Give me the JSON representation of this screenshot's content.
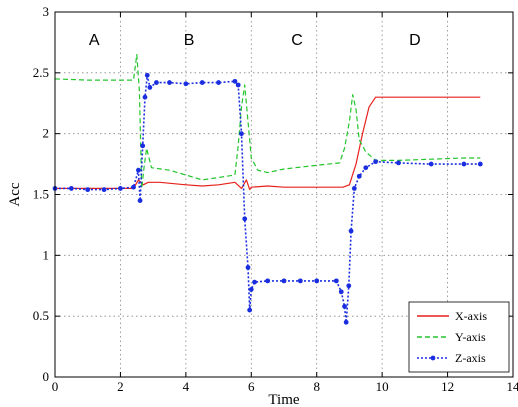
{
  "chart_data": {
    "type": "line",
    "title": "",
    "xlabel": "Time",
    "ylabel": "Acc",
    "xlim": [
      0,
      14
    ],
    "ylim": [
      0,
      3
    ],
    "x_ticks": [
      0,
      2,
      4,
      6,
      8,
      10,
      12,
      14
    ],
    "y_ticks": [
      0,
      0.5,
      1,
      1.5,
      2,
      2.5,
      3
    ],
    "grid": true,
    "grid_style": "dotted",
    "legend_position": "bottom-right",
    "region_labels": [
      {
        "label": "A",
        "x": 1.2,
        "y": 2.78
      },
      {
        "label": "B",
        "x": 4.1,
        "y": 2.78
      },
      {
        "label": "C",
        "x": 7.4,
        "y": 2.78
      },
      {
        "label": "D",
        "x": 11.0,
        "y": 2.78
      }
    ],
    "series": [
      {
        "name": "X-axis",
        "color": "#e8211b",
        "dash": "solid",
        "marker": "none",
        "points": [
          [
            0,
            1.55
          ],
          [
            0.5,
            1.55
          ],
          [
            1.0,
            1.55
          ],
          [
            1.5,
            1.55
          ],
          [
            2.0,
            1.55
          ],
          [
            2.4,
            1.55
          ],
          [
            2.55,
            1.62
          ],
          [
            2.7,
            1.58
          ],
          [
            2.85,
            1.6
          ],
          [
            3.2,
            1.6
          ],
          [
            4.0,
            1.58
          ],
          [
            4.5,
            1.57
          ],
          [
            5.0,
            1.58
          ],
          [
            5.5,
            1.6
          ],
          [
            5.7,
            1.55
          ],
          [
            5.85,
            1.62
          ],
          [
            5.95,
            1.54
          ],
          [
            6.0,
            1.56
          ],
          [
            6.5,
            1.57
          ],
          [
            7.0,
            1.56
          ],
          [
            8.0,
            1.56
          ],
          [
            8.8,
            1.56
          ],
          [
            9.0,
            1.58
          ],
          [
            9.2,
            1.75
          ],
          [
            9.4,
            2.0
          ],
          [
            9.6,
            2.22
          ],
          [
            9.8,
            2.3
          ],
          [
            10.5,
            2.3
          ],
          [
            11.5,
            2.3
          ],
          [
            12.5,
            2.3
          ],
          [
            13.0,
            2.3
          ]
        ]
      },
      {
        "name": "Y-axis",
        "color": "#22c52c",
        "dash": "dashed",
        "marker": "none",
        "points": [
          [
            0,
            2.45
          ],
          [
            1.0,
            2.44
          ],
          [
            2.0,
            2.44
          ],
          [
            2.4,
            2.44
          ],
          [
            2.5,
            2.65
          ],
          [
            2.58,
            2.35
          ],
          [
            2.65,
            1.55
          ],
          [
            2.72,
            1.72
          ],
          [
            2.8,
            1.88
          ],
          [
            2.95,
            1.72
          ],
          [
            3.5,
            1.7
          ],
          [
            4.0,
            1.66
          ],
          [
            4.5,
            1.62
          ],
          [
            5.0,
            1.64
          ],
          [
            5.5,
            1.66
          ],
          [
            5.6,
            1.9
          ],
          [
            5.7,
            2.22
          ],
          [
            5.8,
            2.4
          ],
          [
            5.9,
            2.1
          ],
          [
            6.0,
            1.8
          ],
          [
            6.2,
            1.7
          ],
          [
            6.5,
            1.68
          ],
          [
            7.0,
            1.71
          ],
          [
            8.0,
            1.74
          ],
          [
            8.7,
            1.76
          ],
          [
            8.85,
            1.88
          ],
          [
            9.0,
            2.1
          ],
          [
            9.1,
            2.32
          ],
          [
            9.2,
            2.2
          ],
          [
            9.3,
            1.95
          ],
          [
            9.5,
            1.85
          ],
          [
            9.8,
            1.78
          ],
          [
            10.5,
            1.78
          ],
          [
            11.5,
            1.79
          ],
          [
            12.5,
            1.8
          ],
          [
            13.0,
            1.8
          ]
        ]
      },
      {
        "name": "Z-axis",
        "color": "#1a2ee0",
        "dash": "dotted",
        "marker": "dot",
        "points": [
          [
            0,
            1.55
          ],
          [
            0.5,
            1.55
          ],
          [
            1.0,
            1.54
          ],
          [
            1.5,
            1.54
          ],
          [
            2.0,
            1.55
          ],
          [
            2.4,
            1.56
          ],
          [
            2.55,
            1.7
          ],
          [
            2.6,
            1.45
          ],
          [
            2.68,
            1.9
          ],
          [
            2.75,
            2.3
          ],
          [
            2.82,
            2.48
          ],
          [
            2.9,
            2.38
          ],
          [
            3.1,
            2.42
          ],
          [
            3.5,
            2.42
          ],
          [
            4.0,
            2.41
          ],
          [
            4.5,
            2.42
          ],
          [
            5.0,
            2.42
          ],
          [
            5.5,
            2.43
          ],
          [
            5.6,
            2.4
          ],
          [
            5.7,
            2.0
          ],
          [
            5.8,
            1.3
          ],
          [
            5.9,
            0.9
          ],
          [
            5.95,
            0.55
          ],
          [
            6.0,
            0.72
          ],
          [
            6.1,
            0.78
          ],
          [
            6.5,
            0.79
          ],
          [
            7.0,
            0.79
          ],
          [
            7.5,
            0.79
          ],
          [
            8.0,
            0.79
          ],
          [
            8.6,
            0.79
          ],
          [
            8.75,
            0.7
          ],
          [
            8.85,
            0.58
          ],
          [
            8.9,
            0.45
          ],
          [
            8.98,
            0.75
          ],
          [
            9.05,
            1.2
          ],
          [
            9.15,
            1.55
          ],
          [
            9.3,
            1.65
          ],
          [
            9.5,
            1.72
          ],
          [
            9.8,
            1.77
          ],
          [
            10.5,
            1.76
          ],
          [
            11.5,
            1.75
          ],
          [
            12.5,
            1.75
          ],
          [
            13.0,
            1.75
          ]
        ]
      }
    ]
  }
}
